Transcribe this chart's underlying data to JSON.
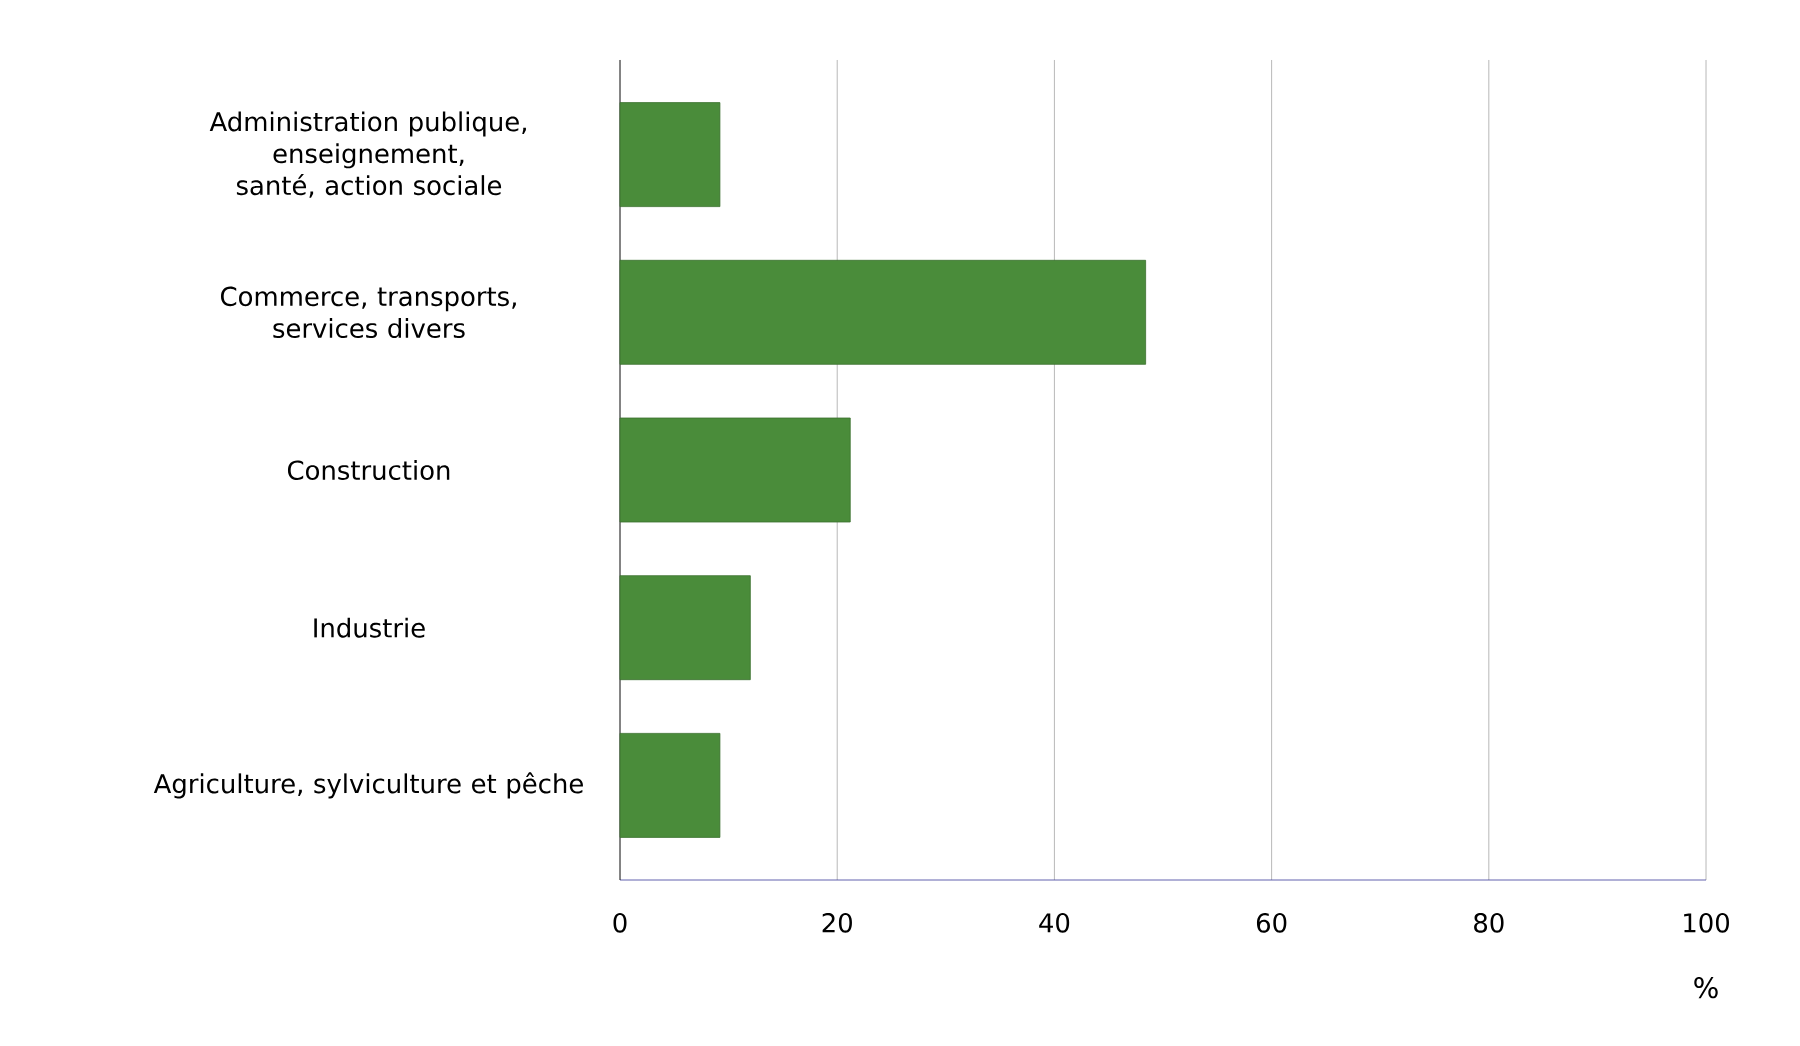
{
  "chart_data": {
    "type": "bar",
    "orientation": "horizontal",
    "xlabel": "%",
    "categories": [
      "Administration publique, enseignement, santé, action sociale",
      "Commerce, transports, services divers",
      "Construction",
      "Industrie",
      "Agriculture, sylviculture et pêche"
    ],
    "values": [
      9.2,
      48.4,
      21.2,
      12,
      9.2
    ],
    "color": "#4a8c3a",
    "xlim": [
      0,
      100
    ],
    "xticks": [
      0,
      20,
      40,
      60,
      80,
      100
    ],
    "grid": "x"
  }
}
